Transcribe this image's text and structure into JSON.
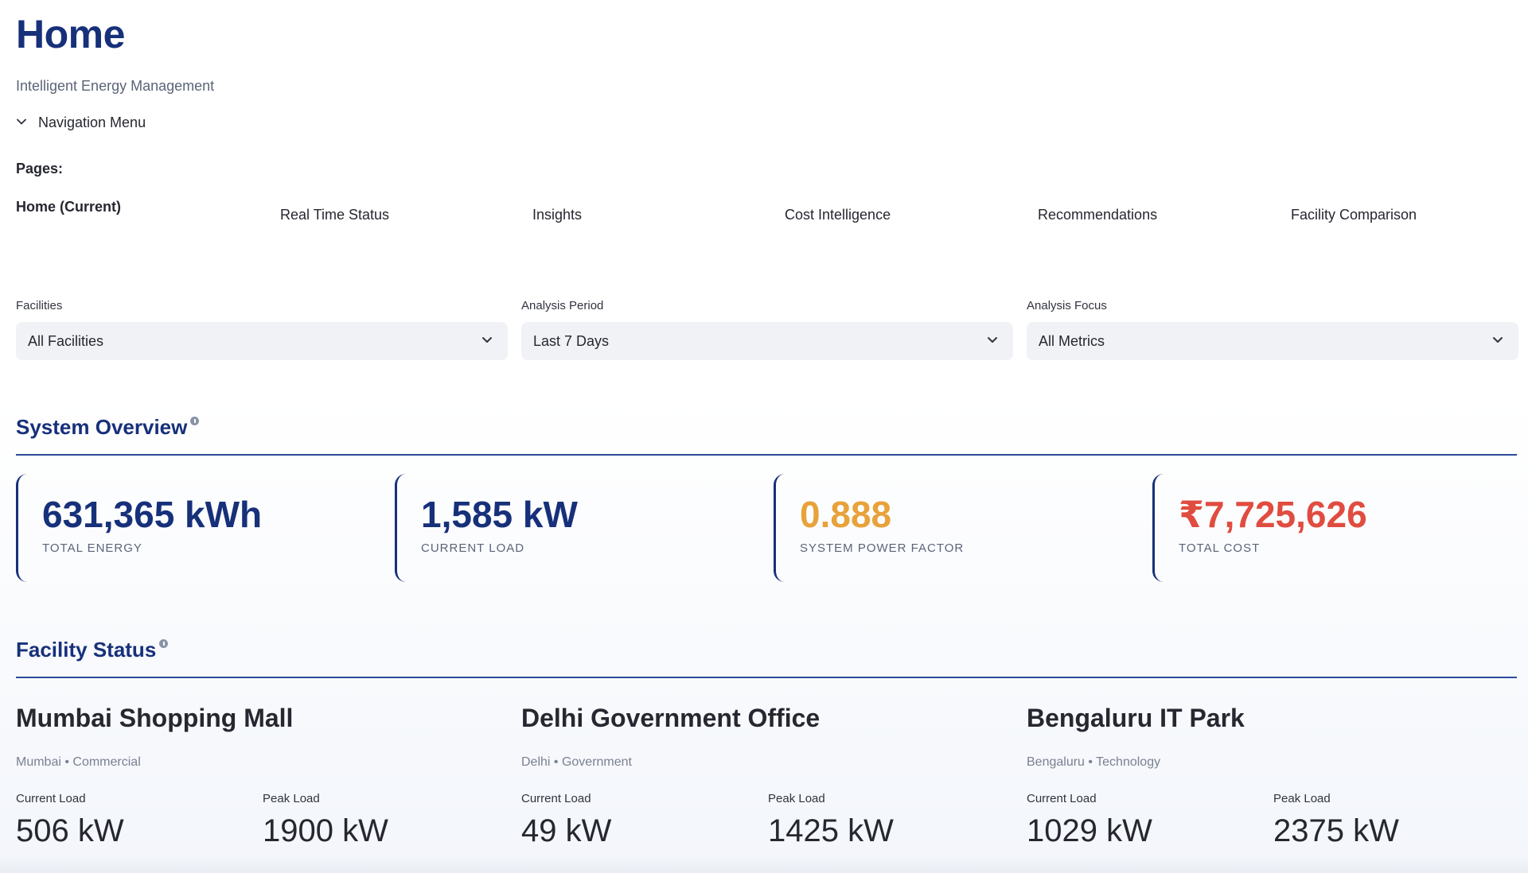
{
  "header": {
    "title": "Home",
    "subtitle": "Intelligent Energy Management"
  },
  "navigation": {
    "expander_label": "Navigation Menu",
    "pages_label": "Pages:",
    "current": "Home (Current)",
    "links": [
      "Real Time Status",
      "Insights",
      "Cost Intelligence",
      "Recommendations",
      "Facility Comparison"
    ]
  },
  "filters": {
    "facilities": {
      "label": "Facilities",
      "value": "All Facilities"
    },
    "period": {
      "label": "Analysis Period",
      "value": "Last 7 Days"
    },
    "focus": {
      "label": "Analysis Focus",
      "value": "All Metrics"
    }
  },
  "system_overview": {
    "title": "System Overview",
    "metrics": [
      {
        "value": "631,365 kWh",
        "label": "TOTAL ENERGY",
        "color": "#17307a"
      },
      {
        "value": "1,585 kW",
        "label": "CURRENT LOAD",
        "color": "#17307a"
      },
      {
        "value": "0.888",
        "label": "SYSTEM POWER FACTOR",
        "color": "#e8a23a"
      },
      {
        "value": "₹7,725,626",
        "label": "TOTAL COST",
        "color": "#e04c3f"
      }
    ]
  },
  "facility_status": {
    "title": "Facility Status",
    "current_load_label": "Current Load",
    "peak_load_label": "Peak Load",
    "facilities": [
      {
        "name": "Mumbai Shopping Mall",
        "meta": "Mumbai • Commercial",
        "current": "506 kW",
        "peak": "1900 kW"
      },
      {
        "name": "Delhi Government Office",
        "meta": "Delhi • Government",
        "current": "49 kW",
        "peak": "1425 kW"
      },
      {
        "name": "Bengaluru IT Park",
        "meta": "Bengaluru • Technology",
        "current": "1029 kW",
        "peak": "2375 kW"
      }
    ]
  },
  "icons": {
    "expander": "chevron-down-icon",
    "select": "chevron-down-icon",
    "info": "info-icon"
  }
}
